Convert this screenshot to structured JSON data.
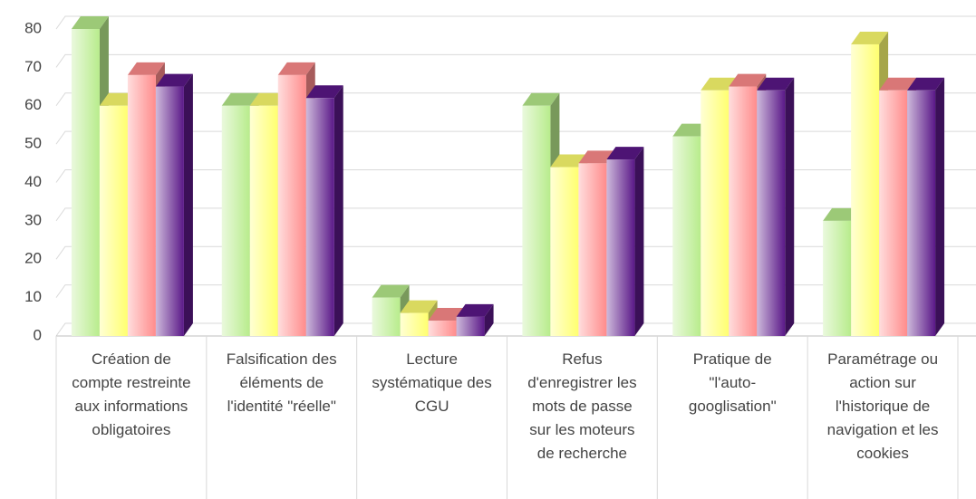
{
  "chart_data": {
    "type": "bar3d",
    "categories": [
      "Création de compte restreinte aux informations obligatoires",
      "Falsification des éléments de l'identité \"réelle\"",
      "Lecture systématique des CGU",
      "Refus d'enregistrer les mots de passe sur les moteurs de recherche",
      "Pratique de \"l'auto-googlisation\"",
      "Paramétrage ou action sur l'historique de navigation et les cookies"
    ],
    "series": [
      {
        "color": "#b8ec8c",
        "values": [
          80,
          60,
          10,
          60,
          52,
          30
        ]
      },
      {
        "color": "#ffff70",
        "values": [
          60,
          60,
          6,
          44,
          64,
          76
        ]
      },
      {
        "color": "#ff8c8c",
        "values": [
          68,
          68,
          4,
          45,
          65,
          64
        ]
      },
      {
        "color": "#5a1888",
        "values": [
          65,
          62,
          5,
          46,
          64,
          64
        ]
      }
    ],
    "ylim": [
      0,
      80
    ],
    "yticks": [
      0,
      10,
      20,
      30,
      40,
      50,
      60,
      70,
      80
    ],
    "grid": true
  }
}
